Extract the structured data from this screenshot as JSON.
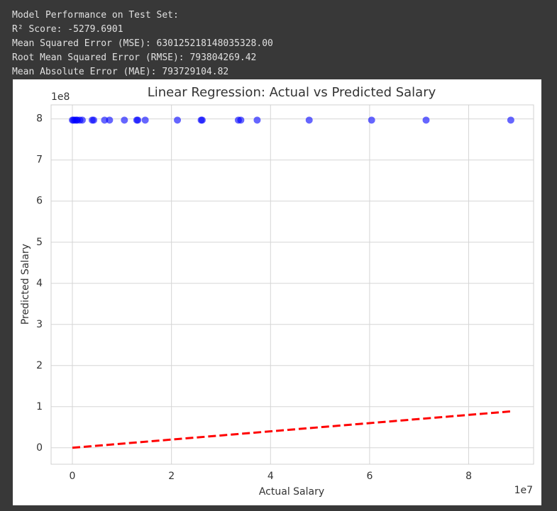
{
  "output_lines": [
    "Model Performance on Test Set:",
    "R² Score: -5279.6901",
    "Mean Squared Error (MSE): 630125218148035328.00",
    "Root Mean Squared Error (RMSE): 793804269.42",
    "Mean Absolute Error (MAE): 793729104.82"
  ],
  "chart_data": {
    "type": "scatter",
    "title": "Linear Regression: Actual vs Predicted Salary",
    "x_label": "Actual Salary",
    "y_label": "Predicted Salary",
    "x_offset_label": "1e7",
    "y_offset_label": "1e8",
    "x": [
      0,
      200000,
      500000,
      800000,
      1000000,
      1500000,
      2000000,
      4000000,
      4300000,
      6500000,
      7500000,
      10500000,
      13000000,
      13200000,
      14700000,
      21200000,
      26000000,
      26200000,
      33500000,
      34000000,
      37300000,
      47800000,
      60400000,
      71400000,
      88500000
    ],
    "values": [
      797000000,
      797000000,
      797000000,
      797000000,
      797000000,
      797000000,
      797000000,
      797000000,
      797000000,
      797000000,
      797000000,
      797000000,
      797000000,
      797000000,
      797000000,
      797000000,
      797000000,
      797000000,
      797000000,
      797000000,
      797000000,
      797000000,
      797000000,
      797000000,
      797000000
    ],
    "color": "#0000ff",
    "reference_line": {
      "x": [
        0,
        88500000
      ],
      "values": [
        0,
        88500000
      ],
      "color": "#ff0000"
    },
    "xlim": [
      -4300000,
      93100000
    ],
    "ylim": [
      -40000000,
      834000000
    ],
    "xticks": [
      {
        "value": 0,
        "label": "0"
      },
      {
        "value": 20000000,
        "label": "2"
      },
      {
        "value": 40000000,
        "label": "4"
      },
      {
        "value": 60000000,
        "label": "6"
      },
      {
        "value": 80000000,
        "label": "8"
      }
    ],
    "yticks": [
      {
        "value": 0,
        "label": "0"
      },
      {
        "value": 100000000,
        "label": "1"
      },
      {
        "value": 200000000,
        "label": "2"
      },
      {
        "value": 300000000,
        "label": "3"
      },
      {
        "value": 400000000,
        "label": "4"
      },
      {
        "value": 500000000,
        "label": "5"
      },
      {
        "value": 600000000,
        "label": "6"
      },
      {
        "value": 700000000,
        "label": "7"
      },
      {
        "value": 800000000,
        "label": "8"
      }
    ],
    "grid": true
  }
}
